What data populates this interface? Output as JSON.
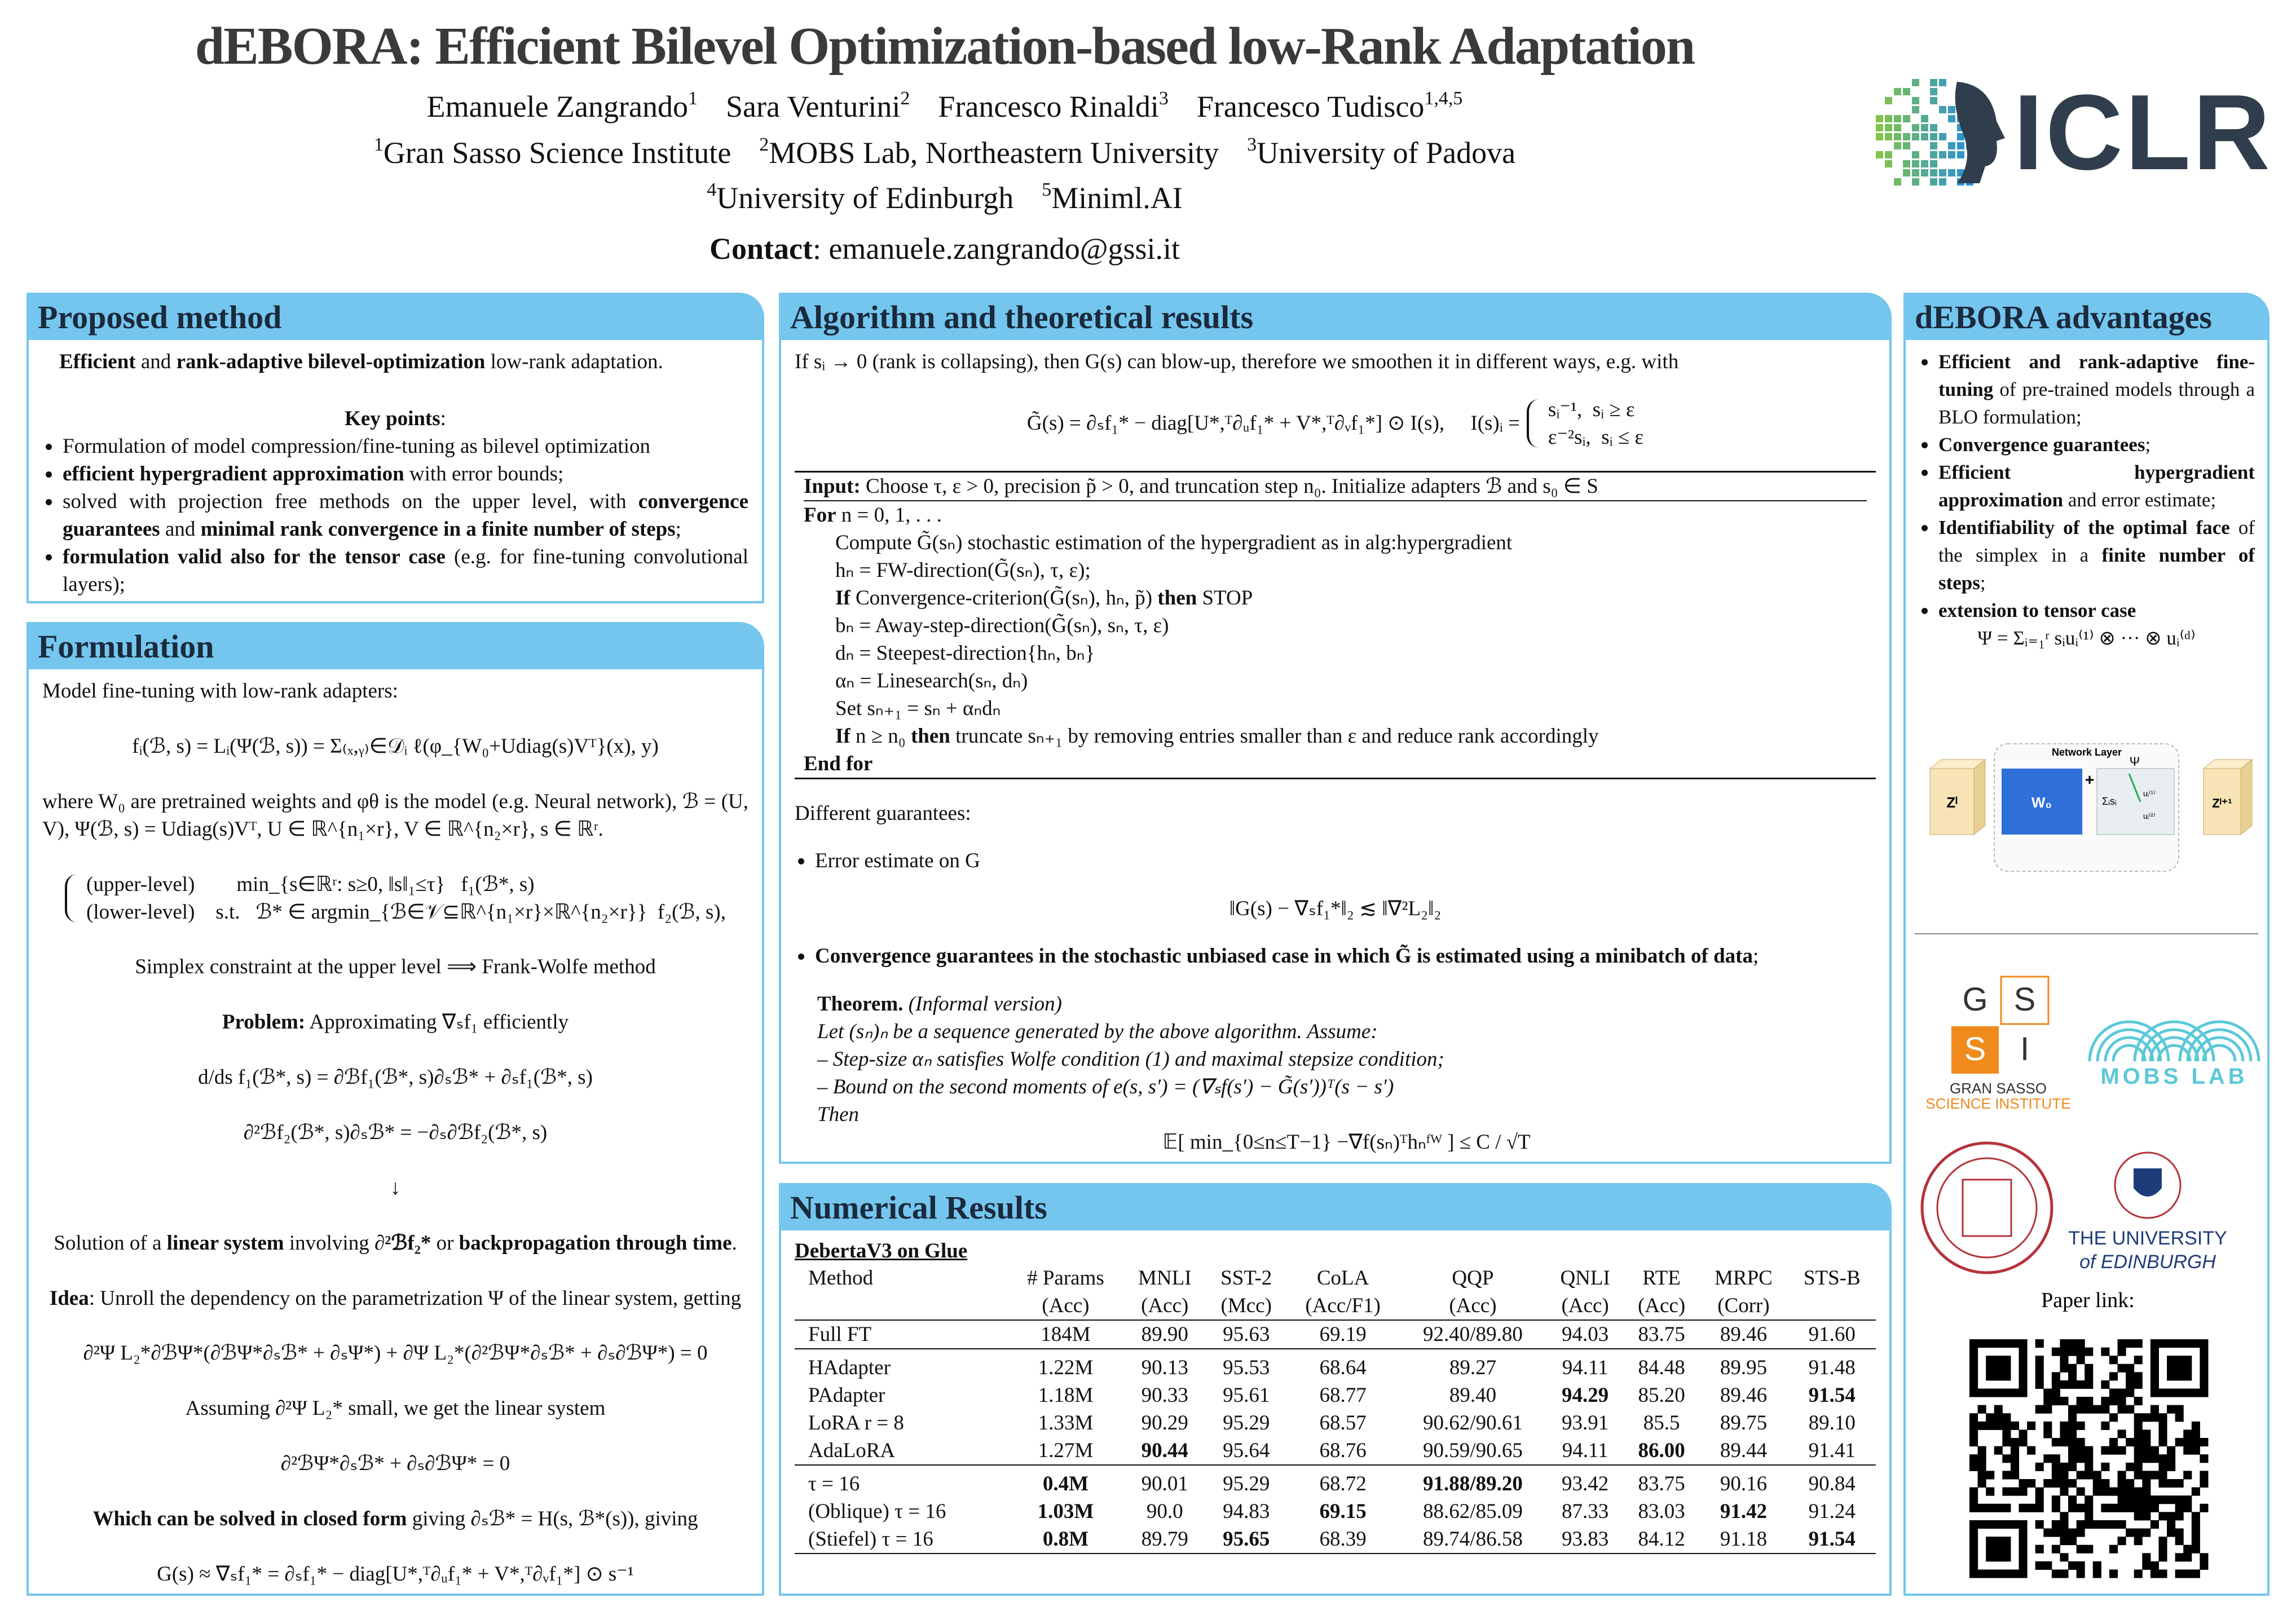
{
  "header": {
    "title": "dEBORA: Efficient Bilevel Optimization-based low-Rank Adaptation",
    "authors": [
      {
        "name": "Emanuele Zangrando",
        "sup": "1"
      },
      {
        "name": "Sara Venturini",
        "sup": "2"
      },
      {
        "name": "Francesco Rinaldi",
        "sup": "3"
      },
      {
        "name": "Francesco Tudisco",
        "sup": "1,4,5"
      }
    ],
    "affiliations": [
      [
        {
          "sup": "1",
          "name": "Gran Sasso Science Institute"
        },
        {
          "sup": "2",
          "name": "MOBS Lab, Northeastern University"
        },
        {
          "sup": "3",
          "name": "University of Padova"
        }
      ],
      [
        {
          "sup": "4",
          "name": "University of Edinburgh"
        },
        {
          "sup": "5",
          "name": "Miniml.AI"
        }
      ]
    ],
    "contact": [
      {
        "t": "Contact",
        "b": true
      },
      ": emanuele.zangrando@gssi.it"
    ],
    "logo": "ICLR"
  },
  "panels": [
    {
      "title": "Proposed method",
      "blocks": [
        {
          "runs": [
            {
              "t": "Efficient",
              "b": true
            },
            " and ",
            {
              "t": "rank-adaptive bilevel-optimization",
              "b": true
            },
            " low-rank adaptation."
          ],
          "indent": true
        },
        {
          "runs": [
            {
              "t": "Key points",
              "b": true
            },
            ":"
          ],
          "align": "center"
        },
        {
          "bullet": true,
          "runs": [
            "Formulation of model compression/fine-tuning as bilevel optimization"
          ]
        },
        {
          "bullet": true,
          "runs": [
            {
              "t": "efficient hypergradient approximation",
              "b": true
            },
            " with error bounds;"
          ]
        },
        {
          "bullet": true,
          "runs": [
            "solved with projection free methods on the upper level, with ",
            {
              "t": "convergence guarantees",
              "b": true
            },
            " and ",
            {
              "t": "minimal rank convergence in a finite number of steps",
              "b": true
            },
            ";"
          ]
        },
        {
          "bullet": true,
          "runs": [
            {
              "t": "formulation valid also for the tensor case",
              "b": true
            },
            " (e.g. for fine-tuning convolutional layers);"
          ]
        }
      ]
    },
    {
      "title": "Formulation",
      "blocks": [
        {
          "runs": [
            "Model fine-tuning with low-rank adapters:"
          ]
        },
        {
          "align": "center",
          "runs": [
            "fᵢ(ℬ, s) = Lᵢ(Ψ(ℬ, s)) = Σ₍ₓ,ᵧ₎∈𝒟ᵢ ℓ(φ_{W₀+Udiag(s)Vᵀ}(x), y)"
          ]
        },
        {
          "runs": [
            "where W₀ are pretrained weights and φθ is the model (e.g. Neural network), ℬ = (U, V), Ψ(ℬ, s) = Udiag(s)Vᵀ, U ∈ ℝ^{n₁×r}, V ∈ ℝ^{n₂×r}, s ∈ ℝʳ."
          ]
        },
        {
          "type": "cases",
          "cases": [
            [
              "(upper-level)        min_{s∈ℝʳ: s≥0, ‖s‖₁≤τ}   f₁(ℬ*, s)"
            ],
            [
              "(lower-level)    s.t.   ℬ* ∈ argmin_{ℬ∈𝒱⊆ℝ^{n₁×r}×ℝ^{n₂×r}}  f₂(ℬ, s),"
            ]
          ]
        },
        {
          "align": "center",
          "runs": [
            "Simplex constraint at the upper level  ⟹  Frank-Wolfe method"
          ]
        },
        {
          "align": "center",
          "runs": [
            {
              "t": "Problem:",
              "b": true
            },
            " Approximating ∇ₛf₁ efficiently"
          ]
        },
        {
          "align": "center",
          "runs": [
            "d/ds f₁(ℬ*, s) = ∂ℬf₁(ℬ*, s)∂ₛℬ* + ∂ₛf₁(ℬ*, s)"
          ]
        },
        {
          "align": "center",
          "runs": [
            "∂²ℬf₂(ℬ*, s)∂ₛℬ* = −∂ₛ∂ℬf₂(ℬ*, s)"
          ]
        },
        {
          "align": "center",
          "runs": [
            "↓"
          ]
        },
        {
          "align": "center",
          "runs": [
            "Solution of a ",
            {
              "t": "linear system",
              "b": true
            },
            " involving ",
            {
              "t": "∂²ℬf₂*",
              "b": true
            },
            " or ",
            {
              "t": "backpropagation through time",
              "b": true
            },
            "."
          ]
        },
        {
          "align": "center",
          "runs": [
            {
              "t": "Idea",
              "b": true
            },
            ": Unroll the dependency on the parametrization Ψ of the linear system, getting"
          ]
        },
        {
          "align": "center",
          "runs": [
            "∂²Ψ L₂*∂ℬΨ*(∂ℬΨ*∂ₛℬ* + ∂ₛΨ*) + ∂Ψ L₂*(∂²ℬΨ*∂ₛℬ* + ∂ₛ∂ℬΨ*) = 0"
          ]
        },
        {
          "align": "center",
          "runs": [
            "Assuming ∂²Ψ L₂* small, we get the linear system"
          ]
        },
        {
          "align": "center",
          "runs": [
            "∂²ℬΨ*∂ₛℬ* + ∂ₛ∂ℬΨ* = 0"
          ]
        },
        {
          "align": "center",
          "runs": [
            {
              "t": "Which can be solved in closed form",
              "b": true
            },
            " giving ∂ₛℬ* = H(s, ℬ*(s)), giving"
          ]
        },
        {
          "align": "center",
          "runs": [
            "G(s) ≈ ∇ₛf₁* = ∂ₛf₁* − diag[U*,ᵀ∂ᵤf₁* + V*,ᵀ∂ᵥf₁*] ⊙ s⁻¹"
          ]
        }
      ]
    },
    {
      "title": "Algorithm and theoretical results",
      "blocks": [
        {
          "runs": [
            "If sᵢ → 0 (rank is collapsing), then G(s) can blow-up, therefore we smoothen it in different ways, e.g. with"
          ]
        },
        {
          "type": "cases",
          "lhs": [
            "G̃(s) = ∂ₛf₁* − diag[U*,ᵀ∂ᵤf₁* + V*,ᵀ∂ᵥf₁*] ⊙ I(s),     I(s)ᵢ ="
          ],
          "cases": [
            [
              "sᵢ⁻¹,  sᵢ ≥ ε"
            ],
            [
              "ε⁻²sᵢ,  sᵢ ≤ ε"
            ]
          ]
        },
        {
          "type": "algo",
          "lines": [
            {
              "indent": 0,
              "runs": [
                {
                  "t": "Input:",
                  "b": true
                },
                " Choose τ, ε > 0, precision p̃ > 0, and truncation step n₀. Initialize adapters ℬ and s₀ ∈ S"
              ]
            },
            {
              "indent": 0,
              "runs": [
                {
                  "t": "For",
                  "b": true
                },
                " n = 0, 1, . . ."
              ]
            },
            {
              "indent": 1,
              "runs": [
                "Compute G̃(sₙ) stochastic estimation of the hypergradient as in alg:hypergradient"
              ]
            },
            {
              "indent": 1,
              "runs": [
                "hₙ = FW-direction(G̃(sₙ), τ, ε);"
              ]
            },
            {
              "indent": 1,
              "runs": [
                {
                  "t": "If",
                  "b": true
                },
                " Convergence-criterion(G̃(sₙ), hₙ, p̃) ",
                {
                  "t": "then",
                  "b": true
                },
                " STOP"
              ]
            },
            {
              "indent": 1,
              "runs": [
                "bₙ = Away-step-direction(G̃(sₙ), sₙ, τ, ε)"
              ]
            },
            {
              "indent": 1,
              "runs": [
                "dₙ = Steepest-direction{hₙ, bₙ}"
              ]
            },
            {
              "indent": 1,
              "runs": [
                "αₙ = Linesearch(sₙ, dₙ)"
              ]
            },
            {
              "indent": 1,
              "runs": [
                "Set sₙ₊₁ = sₙ + αₙdₙ"
              ]
            },
            {
              "indent": 1,
              "runs": [
                {
                  "t": "If",
                  "b": true
                },
                " n ≥ n₀ ",
                {
                  "t": "then",
                  "b": true
                },
                " truncate sₙ₊₁ by removing entries smaller than ε and reduce rank accordingly"
              ]
            },
            {
              "indent": 0,
              "runs": [
                {
                  "t": "End for",
                  "b": true
                }
              ]
            }
          ]
        },
        {
          "runs": [
            "Different guarantees:"
          ]
        },
        {
          "bullet": true,
          "runs": [
            "Error estimate on G"
          ]
        },
        {
          "align": "center",
          "runs": [
            "‖G(s) − ∇ₛf₁*‖₂ ≲ ‖∇²L₂‖₂"
          ]
        },
        {
          "bullet": true,
          "runs": [
            {
              "t": "Convergence guarantees in the stochastic unbiased case in which G̃ is estimated using a minibatch of data",
              "b": true
            },
            ";"
          ]
        },
        {
          "type": "theorem",
          "lines": [
            [
              {
                "t": "Theorem.",
                "b": true
              },
              {
                "t": "  (Informal version)",
                "i": true
              }
            ],
            [
              {
                "t": "Let (sₙ)ₙ be a sequence generated by the above algorithm. Assume:",
                "i": true
              }
            ],
            [
              {
                "t": "– Step-size αₙ satisfies Wolfe condition (1) and maximal stepsize condition;",
                "i": true
              }
            ],
            [
              {
                "t": "– Bound on the second moments of e(s, s′) = (∇ₛf(s′) − G̃(s′))ᵀ(s − s′)",
                "i": true
              }
            ],
            [
              {
                "t": "Then",
                "i": true
              }
            ]
          ],
          "formula": [
            "𝔼[ min_{0≤n≤T−1} −∇f(sₙ)ᵀhₙᶠᵂ ] ≤ C / √T"
          ]
        }
      ]
    },
    {
      "title": "Numerical Results",
      "table": {
        "caption": "DebertaV3 on Glue",
        "header": [
          [
            "Method",
            "# Params",
            "MNLI",
            "SST-2",
            "CoLA",
            "QQP",
            "QNLI",
            "RTE",
            "MRPC",
            "STS-B"
          ],
          [
            null,
            "(Acc)",
            "(Acc)",
            "(Mcc)",
            "(Acc/F1)",
            "(Acc)",
            "(Acc)",
            "(Acc)",
            "(Corr)",
            null
          ]
        ],
        "groups": [
          [
            [
              "Full FT",
              "184M",
              "89.90",
              "95.63",
              "69.19",
              "92.40/89.80",
              "94.03",
              "83.75",
              "89.46",
              "91.60"
            ]
          ],
          [
            [
              "HAdapter",
              "1.22M",
              "90.13",
              "95.53",
              "68.64",
              "89.27",
              "94.11",
              "84.48",
              "89.95",
              "91.48"
            ],
            [
              "PAdapter",
              "1.18M",
              "90.33",
              "95.61",
              "68.77",
              "89.40",
              {
                "t": "94.29",
                "b": true
              },
              "85.20",
              "89.46",
              {
                "t": "91.54",
                "b": true
              }
            ],
            [
              "LoRA r = 8",
              "1.33M",
              "90.29",
              "95.29",
              "68.57",
              "90.62/90.61",
              "93.91",
              "85.5",
              "89.75",
              "89.10"
            ],
            [
              "AdaLoRA",
              "1.27M",
              {
                "t": "90.44",
                "b": true
              },
              "95.64",
              "68.76",
              "90.59/90.65",
              "94.11",
              {
                "t": "86.00",
                "b": true
              },
              "89.44",
              "91.41"
            ]
          ],
          [
            [
              "τ = 16",
              {
                "t": "0.4M",
                "b": true
              },
              "90.01",
              "95.29",
              "68.72",
              {
                "t": "91.88/89.20",
                "b": true
              },
              "93.42",
              "83.75",
              "90.16",
              "90.84"
            ],
            [
              "(Oblique) τ = 16",
              {
                "t": "1.03M",
                "b": true
              },
              "90.0",
              "94.83",
              {
                "t": "69.15",
                "b": true
              },
              "88.62/85.09",
              "87.33",
              "83.03",
              {
                "t": "91.42",
                "b": true
              },
              "91.24"
            ],
            [
              "(Stiefel) τ = 16",
              {
                "t": "0.8M",
                "b": true
              },
              "89.79",
              {
                "t": "95.65",
                "b": true
              },
              "68.39",
              "89.74/86.58",
              "93.83",
              "84.12",
              "91.18",
              {
                "t": "91.54",
                "b": true
              }
            ]
          ]
        ]
      }
    },
    {
      "title": "dEBORA advantages",
      "blocks": [
        {
          "bullet": true,
          "runs": [
            {
              "t": "Efficient and rank-adaptive fine-tuning",
              "b": true
            },
            " of pre-trained models through a BLO formulation;"
          ]
        },
        {
          "bullet": true,
          "runs": [
            {
              "t": "Convergence guarantees",
              "b": true
            },
            ";"
          ]
        },
        {
          "bullet": true,
          "runs": [
            {
              "t": "Efficient hypergradient approximation",
              "b": true
            },
            " and error estimate;"
          ]
        },
        {
          "bullet": true,
          "runs": [
            {
              "t": "Identifiability of the optimal face",
              "b": true
            },
            " of the simplex in a ",
            {
              "t": "finite number of steps",
              "b": true
            },
            ";"
          ]
        },
        {
          "bullet": true,
          "runs": [
            {
              "t": "extension to tensor case",
              "b": true
            }
          ]
        },
        {
          "align": "center",
          "runs": [
            "Ψ = Σᵢ₌₁ʳ sᵢuᵢ⁽¹⁾ ⊗ ··· ⊗ uᵢ⁽ᵈ⁾"
          ]
        }
      ]
    }
  ],
  "diagram": {
    "title": "Network Layer",
    "input": "Zˡ",
    "weight": "W₀",
    "op": "+",
    "psi": "Ψ",
    "sum": "Σᵢsᵢ",
    "u1": "uᵢ⁽¹⁾",
    "u2": "uᵢ⁽²⁾",
    "output": "Zˡ⁺¹"
  },
  "logos": {
    "gssi": [
      "G",
      "S",
      "S",
      "I"
    ],
    "gssi_name": "GRAN SASSO",
    "gssi_sub": "SCIENCE INSTITUTE",
    "mobs": "MOBS LAB",
    "edinburgh": "THE UNIVERSITY",
    "edinburgh_sub": "of EDINBURGH"
  },
  "paper_link": "Paper link:"
}
